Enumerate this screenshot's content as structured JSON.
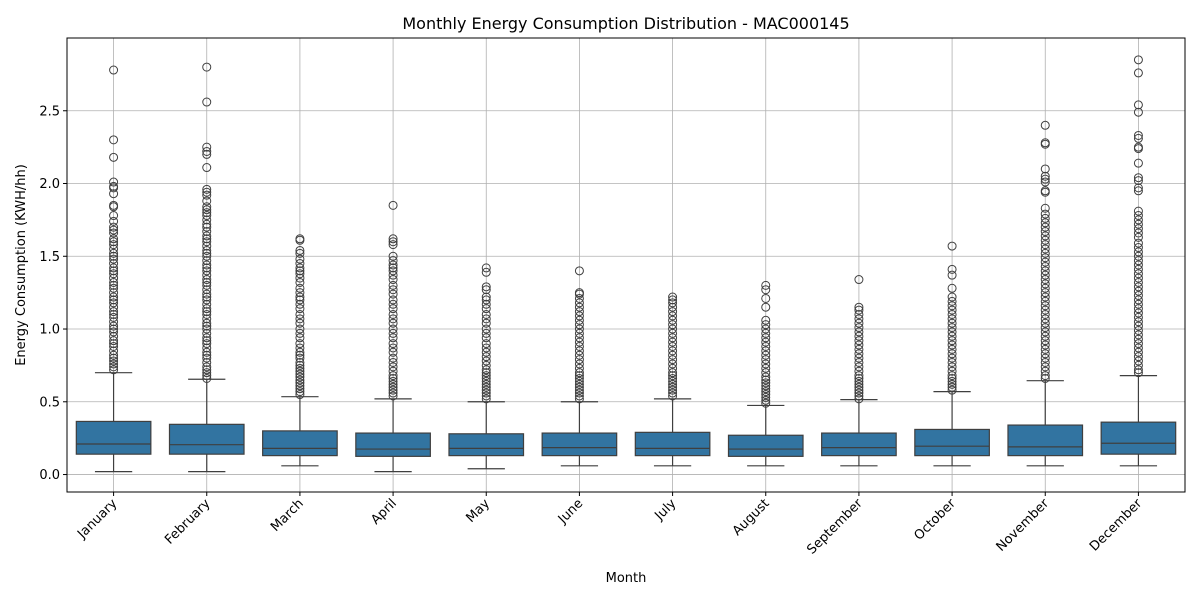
{
  "chart_data": {
    "type": "boxplot",
    "title": "Monthly Energy Consumption Distribution - MAC000145",
    "xlabel": "Month",
    "ylabel": "Energy Consumption (KWH/hh)",
    "ylim": [
      -0.12,
      3.0
    ],
    "yticks": [
      "0.0",
      "0.5",
      "1.0",
      "1.5",
      "2.0",
      "2.5"
    ],
    "grid": true,
    "box_color": "#3274a1",
    "categories": [
      "January",
      "February",
      "March",
      "April",
      "May",
      "June",
      "July",
      "August",
      "September",
      "October",
      "November",
      "December"
    ],
    "boxes": [
      {
        "whisker_low": 0.02,
        "q1": 0.14,
        "median": 0.21,
        "q3": 0.365,
        "whisker_high": 0.7,
        "outlier_max": 2.78,
        "outliers": [
          2.78,
          2.3,
          2.18,
          2.01,
          1.98,
          1.97,
          1.93,
          1.85,
          1.84,
          1.78,
          1.74,
          1.7,
          1.68,
          1.66,
          1.62,
          1.6,
          1.58,
          1.55,
          1.52,
          1.5,
          1.48,
          1.45,
          1.42,
          1.4,
          1.38,
          1.35,
          1.32,
          1.3,
          1.28,
          1.25,
          1.22,
          1.2,
          1.18,
          1.15,
          1.12,
          1.1,
          1.08,
          1.05,
          1.02,
          1.0,
          0.98,
          0.95,
          0.92,
          0.9,
          0.88,
          0.85,
          0.82,
          0.8,
          0.78,
          0.76,
          0.74,
          0.72
        ]
      },
      {
        "whisker_low": 0.02,
        "q1": 0.14,
        "median": 0.205,
        "q3": 0.345,
        "whisker_high": 0.655,
        "outlier_max": 2.8,
        "outliers": [
          2.8,
          2.56,
          2.25,
          2.22,
          2.2,
          2.11,
          1.96,
          1.94,
          1.92,
          1.88,
          1.84,
          1.82,
          1.8,
          1.78,
          1.75,
          1.72,
          1.7,
          1.67,
          1.64,
          1.62,
          1.6,
          1.57,
          1.54,
          1.52,
          1.5,
          1.47,
          1.44,
          1.42,
          1.4,
          1.37,
          1.34,
          1.32,
          1.3,
          1.27,
          1.24,
          1.22,
          1.2,
          1.17,
          1.14,
          1.12,
          1.1,
          1.07,
          1.04,
          1.02,
          1.0,
          0.97,
          0.94,
          0.92,
          0.9,
          0.87,
          0.84,
          0.82,
          0.8,
          0.77,
          0.74,
          0.72,
          0.7,
          0.68,
          0.66
        ]
      },
      {
        "whisker_low": 0.06,
        "q1": 0.13,
        "median": 0.18,
        "q3": 0.3,
        "whisker_high": 0.535,
        "outlier_max": 1.62,
        "outliers": [
          1.62,
          1.61,
          1.54,
          1.52,
          1.48,
          1.45,
          1.42,
          1.4,
          1.38,
          1.35,
          1.32,
          1.28,
          1.25,
          1.22,
          1.2,
          1.17,
          1.14,
          1.1,
          1.07,
          1.04,
          1.0,
          0.97,
          0.94,
          0.9,
          0.87,
          0.84,
          0.82,
          0.8,
          0.77,
          0.75,
          0.73,
          0.71,
          0.69,
          0.67,
          0.65,
          0.63,
          0.61,
          0.59,
          0.57,
          0.55
        ]
      },
      {
        "whisker_low": 0.02,
        "q1": 0.125,
        "median": 0.175,
        "q3": 0.285,
        "whisker_high": 0.52,
        "outlier_max": 1.85,
        "outliers": [
          1.85,
          1.62,
          1.6,
          1.58,
          1.5,
          1.47,
          1.44,
          1.42,
          1.4,
          1.37,
          1.34,
          1.3,
          1.27,
          1.24,
          1.2,
          1.17,
          1.14,
          1.1,
          1.07,
          1.04,
          1.0,
          0.97,
          0.94,
          0.9,
          0.87,
          0.84,
          0.8,
          0.77,
          0.74,
          0.71,
          0.68,
          0.66,
          0.64,
          0.62,
          0.6,
          0.58,
          0.56,
          0.54
        ]
      },
      {
        "whisker_low": 0.04,
        "q1": 0.13,
        "median": 0.18,
        "q3": 0.28,
        "whisker_high": 0.5,
        "outlier_max": 1.42,
        "outliers": [
          1.42,
          1.39,
          1.29,
          1.27,
          1.22,
          1.2,
          1.17,
          1.14,
          1.1,
          1.07,
          1.04,
          1.0,
          0.97,
          0.94,
          0.9,
          0.87,
          0.84,
          0.81,
          0.78,
          0.75,
          0.72,
          0.7,
          0.68,
          0.66,
          0.64,
          0.62,
          0.6,
          0.58,
          0.56,
          0.54,
          0.52
        ]
      },
      {
        "whisker_low": 0.06,
        "q1": 0.13,
        "median": 0.185,
        "q3": 0.285,
        "whisker_high": 0.5,
        "outlier_max": 1.4,
        "outliers": [
          1.4,
          1.25,
          1.24,
          1.21,
          1.18,
          1.15,
          1.12,
          1.09,
          1.06,
          1.03,
          1.0,
          0.97,
          0.94,
          0.91,
          0.88,
          0.85,
          0.82,
          0.79,
          0.76,
          0.73,
          0.7,
          0.68,
          0.66,
          0.64,
          0.62,
          0.6,
          0.58,
          0.56,
          0.54,
          0.52
        ]
      },
      {
        "whisker_low": 0.06,
        "q1": 0.13,
        "median": 0.18,
        "q3": 0.29,
        "whisker_high": 0.52,
        "outlier_max": 1.22,
        "outliers": [
          1.22,
          1.2,
          1.18,
          1.15,
          1.12,
          1.09,
          1.06,
          1.03,
          1.0,
          0.97,
          0.94,
          0.91,
          0.88,
          0.85,
          0.82,
          0.79,
          0.76,
          0.73,
          0.7,
          0.68,
          0.66,
          0.64,
          0.62,
          0.6,
          0.58,
          0.56,
          0.54
        ]
      },
      {
        "whisker_low": 0.06,
        "q1": 0.125,
        "median": 0.175,
        "q3": 0.27,
        "whisker_high": 0.475,
        "outlier_max": 1.3,
        "outliers": [
          1.3,
          1.27,
          1.21,
          1.15,
          1.06,
          1.03,
          1.0,
          0.97,
          0.94,
          0.91,
          0.88,
          0.85,
          0.82,
          0.79,
          0.76,
          0.73,
          0.7,
          0.67,
          0.65,
          0.63,
          0.61,
          0.59,
          0.57,
          0.55,
          0.53,
          0.51,
          0.49
        ]
      },
      {
        "whisker_low": 0.06,
        "q1": 0.13,
        "median": 0.185,
        "q3": 0.285,
        "whisker_high": 0.515,
        "outlier_max": 1.34,
        "outliers": [
          1.34,
          1.15,
          1.13,
          1.1,
          1.07,
          1.04,
          1.01,
          0.98,
          0.95,
          0.92,
          0.89,
          0.86,
          0.83,
          0.8,
          0.77,
          0.74,
          0.71,
          0.68,
          0.66,
          0.64,
          0.62,
          0.6,
          0.58,
          0.56,
          0.54,
          0.52
        ]
      },
      {
        "whisker_low": 0.06,
        "q1": 0.13,
        "median": 0.195,
        "q3": 0.31,
        "whisker_high": 0.57,
        "outlier_max": 1.57,
        "outliers": [
          1.57,
          1.41,
          1.37,
          1.28,
          1.22,
          1.19,
          1.16,
          1.13,
          1.1,
          1.07,
          1.04,
          1.01,
          0.98,
          0.95,
          0.92,
          0.89,
          0.86,
          0.83,
          0.8,
          0.77,
          0.74,
          0.71,
          0.68,
          0.66,
          0.64,
          0.62,
          0.6,
          0.58
        ]
      },
      {
        "whisker_low": 0.06,
        "q1": 0.13,
        "median": 0.19,
        "q3": 0.34,
        "whisker_high": 0.645,
        "outlier_max": 2.4,
        "outliers": [
          2.4,
          2.28,
          2.27,
          2.1,
          2.05,
          2.03,
          2.01,
          1.95,
          1.94,
          1.83,
          1.79,
          1.76,
          1.73,
          1.7,
          1.67,
          1.64,
          1.61,
          1.58,
          1.55,
          1.52,
          1.49,
          1.46,
          1.43,
          1.4,
          1.37,
          1.34,
          1.31,
          1.28,
          1.25,
          1.22,
          1.19,
          1.16,
          1.13,
          1.1,
          1.07,
          1.04,
          1.01,
          0.98,
          0.95,
          0.92,
          0.89,
          0.86,
          0.83,
          0.8,
          0.77,
          0.74,
          0.71,
          0.68,
          0.66
        ]
      },
      {
        "whisker_low": 0.06,
        "q1": 0.14,
        "median": 0.215,
        "q3": 0.36,
        "whisker_high": 0.68,
        "outlier_max": 2.85,
        "outliers": [
          2.85,
          2.76,
          2.54,
          2.49,
          2.33,
          2.31,
          2.25,
          2.24,
          2.14,
          2.04,
          2.02,
          1.97,
          1.95,
          1.81,
          1.78,
          1.75,
          1.72,
          1.69,
          1.66,
          1.63,
          1.59,
          1.56,
          1.53,
          1.5,
          1.47,
          1.44,
          1.41,
          1.38,
          1.35,
          1.32,
          1.29,
          1.26,
          1.23,
          1.2,
          1.17,
          1.14,
          1.11,
          1.08,
          1.05,
          1.02,
          0.99,
          0.96,
          0.93,
          0.9,
          0.87,
          0.84,
          0.81,
          0.78,
          0.75,
          0.72,
          0.7
        ]
      }
    ]
  }
}
